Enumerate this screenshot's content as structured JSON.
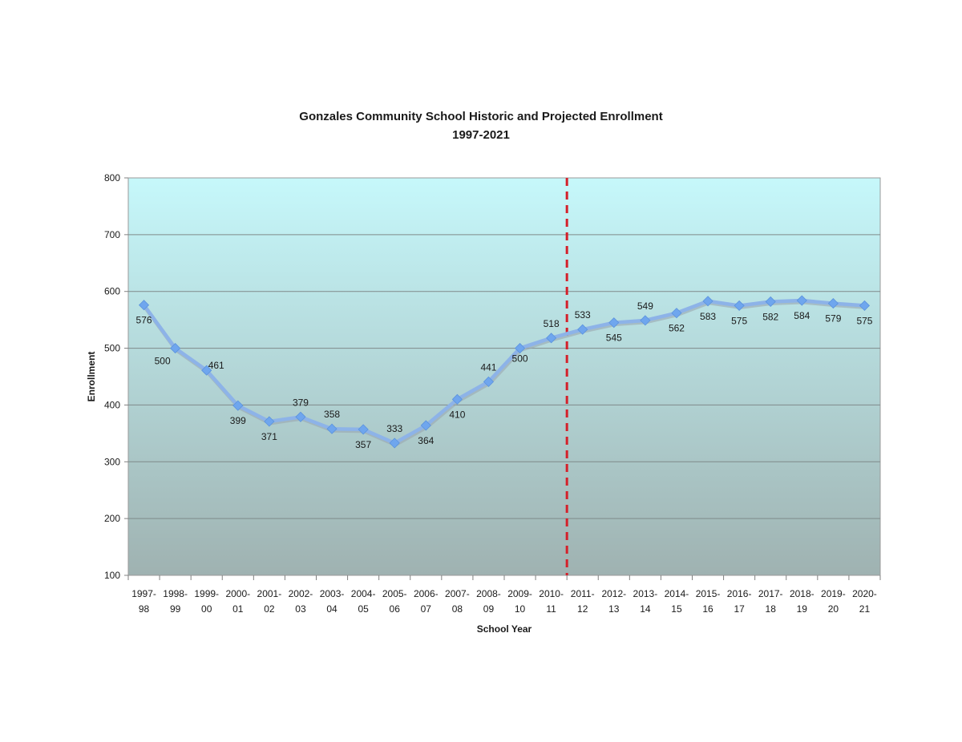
{
  "chart_data": {
    "type": "line",
    "title": "Gonzales Community School Historic and Projected Enrollment",
    "subtitle": "1997-2021",
    "xlabel": "School Year",
    "ylabel": "Enrollment",
    "ylim": [
      100,
      800
    ],
    "yticks": [
      "100",
      "200",
      "300",
      "400",
      "500",
      "600",
      "700",
      "800"
    ],
    "grid": true,
    "legend": "none",
    "divider_after_category": "2010-11",
    "colors": {
      "line": "#8db3e8",
      "marker": "#6fa6ee",
      "divider": "#d4202a",
      "plot_top": "#c6f8fb",
      "plot_bottom": "#9fb2b1"
    },
    "categories": [
      {
        "line1": "1997-",
        "line2": "98"
      },
      {
        "line1": "1998-",
        "line2": "99"
      },
      {
        "line1": "1999-",
        "line2": "00"
      },
      {
        "line1": "2000-",
        "line2": "01"
      },
      {
        "line1": "2001-",
        "line2": "02"
      },
      {
        "line1": "2002-",
        "line2": "03"
      },
      {
        "line1": "2003-",
        "line2": "04"
      },
      {
        "line1": "2004-",
        "line2": "05"
      },
      {
        "line1": "2005-",
        "line2": "06"
      },
      {
        "line1": "2006-",
        "line2": "07"
      },
      {
        "line1": "2007-",
        "line2": "08"
      },
      {
        "line1": "2008-",
        "line2": "09"
      },
      {
        "line1": "2009-",
        "line2": "10"
      },
      {
        "line1": "2010-",
        "line2": "11"
      },
      {
        "line1": "2011-",
        "line2": "12"
      },
      {
        "line1": "2012-",
        "line2": "13"
      },
      {
        "line1": "2013-",
        "line2": "14"
      },
      {
        "line1": "2014-",
        "line2": "15"
      },
      {
        "line1": "2015-",
        "line2": "16"
      },
      {
        "line1": "2016-",
        "line2": "17"
      },
      {
        "line1": "2017-",
        "line2": "18"
      },
      {
        "line1": "2018-",
        "line2": "19"
      },
      {
        "line1": "2019-",
        "line2": "20"
      },
      {
        "line1": "2020-",
        "line2": "21"
      }
    ],
    "values": [
      576,
      500,
      461,
      399,
      371,
      379,
      358,
      357,
      333,
      364,
      410,
      441,
      500,
      518,
      533,
      545,
      549,
      562,
      583,
      575,
      582,
      584,
      579,
      575
    ],
    "labels": [
      "576",
      "500",
      "461",
      "399",
      "371",
      "379",
      "358",
      "357",
      "333",
      "364",
      "410",
      "441",
      "500",
      "518",
      "533",
      "545",
      "549",
      "562",
      "583",
      "575",
      "582",
      "584",
      "579",
      "575"
    ]
  }
}
